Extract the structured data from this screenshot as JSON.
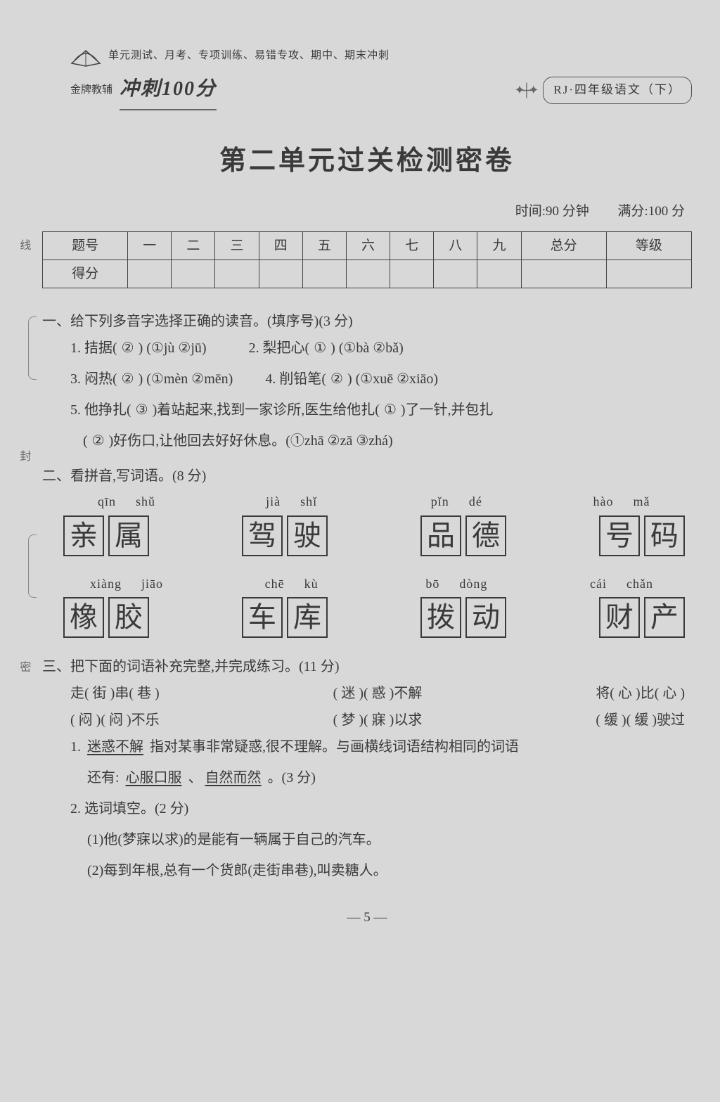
{
  "header": {
    "small_sub": "单元测试、月考、专项训练、易错专攻、期中、期末冲刺",
    "brand": "金牌教辅",
    "slogan": "冲刺100分",
    "badge": "RJ·四年级语文（下）",
    "side_labels": [
      "线",
      "封",
      "密"
    ]
  },
  "title": "第二单元过关检测密卷",
  "meta": {
    "time": "时间:90 分钟",
    "full": "满分:100 分"
  },
  "score_table": {
    "row1": [
      "题号",
      "一",
      "二",
      "三",
      "四",
      "五",
      "六",
      "七",
      "八",
      "九",
      "总分",
      "等级"
    ],
    "row2_head": "得分"
  },
  "q1": {
    "title": "一、给下列多音字选择正确的读音。(填序号)(3 分)",
    "l1a": "1. 拮据(",
    "l1a_ans": "②",
    "l1a_opts": ") (①jù  ②jū)",
    "l1b": "2. 梨把心(",
    "l1b_ans": "①",
    "l1b_opts": ") (①bà  ②bǎ)",
    "l2a": "3. 闷热(",
    "l2a_ans": "②",
    "l2a_opts": ") (①mèn  ②mēn)",
    "l2b": "4. 削铅笔(",
    "l2b_ans": "②",
    "l2b_opts": ") (①xuē  ②xiāo)",
    "l3_pre": "5. 他挣扎(",
    "l3_a1": "③",
    "l3_mid1": ")着站起来,找到一家诊所,医生给他扎(",
    "l3_a2": "①",
    "l3_mid2": ")了一针,并包扎",
    "l3_line2_pre": "(",
    "l3_a3": "②",
    "l3_line2_post": ")好伤口,让他回去好好休息。(①zhā  ②zā  ③zhá)"
  },
  "q2": {
    "title": "二、看拼音,写词语。(8 分)",
    "groups": [
      {
        "py": [
          "qīn",
          "shǔ"
        ],
        "ch": [
          "亲",
          "属"
        ]
      },
      {
        "py": [
          "jià",
          "shǐ"
        ],
        "ch": [
          "驾",
          "驶"
        ]
      },
      {
        "py": [
          "pǐn",
          "dé"
        ],
        "ch": [
          "品",
          "德"
        ]
      },
      {
        "py": [
          "hào",
          "mǎ"
        ],
        "ch": [
          "号",
          "码"
        ]
      },
      {
        "py": [
          "xiàng",
          "jiāo"
        ],
        "ch": [
          "橡",
          "胶"
        ]
      },
      {
        "py": [
          "chē",
          "kù"
        ],
        "ch": [
          "车",
          "库"
        ]
      },
      {
        "py": [
          "bō",
          "dòng"
        ],
        "ch": [
          "拨",
          "动"
        ]
      },
      {
        "py": [
          "cái",
          "chǎn"
        ],
        "ch": [
          "财",
          "产"
        ]
      }
    ]
  },
  "q3": {
    "title": "三、把下面的词语补充完整,并完成练习。(11 分)",
    "row1": [
      {
        "pre": "走(",
        "a": "街",
        "mid": ")串(",
        "b": "巷",
        "post": ")"
      },
      {
        "pre": "(",
        "a": "迷",
        "mid": ")(",
        "b": "惑",
        "post": ")不解"
      },
      {
        "pre": "将(",
        "a": "心",
        "mid": ")比(",
        "b": "心",
        "post": ")"
      }
    ],
    "row2": [
      {
        "pre": "(",
        "a": "闷",
        "mid": ")(",
        "b": "闷",
        "post": ")不乐"
      },
      {
        "pre": "(",
        "a": "梦",
        "mid": ")(",
        "b": "寐",
        "post": ")以求"
      },
      {
        "pre": "(",
        "a": "缓",
        "mid": ")(",
        "b": "缓",
        "post": ")驶过"
      }
    ],
    "sub1_pre": "1. ",
    "sub1_u": "迷惑不解",
    "sub1_mid": " 指对某事非常疑惑,很不理解。与画横线词语结构相同的词语",
    "sub1_line2_pre": "还有: ",
    "sub1_u2": "心服口服",
    "sub1_sep": " 、",
    "sub1_u3": "自然而然",
    "sub1_line2_post": " 。(3 分)",
    "sub2_title": "2. 选词填空。(2 分)",
    "sub2_1_pre": "(1)他(",
    "sub2_1_ans": "梦寐以求",
    "sub2_1_post": ")的是能有一辆属于自己的汽车。",
    "sub2_2_pre": "(2)每到年根,总有一个货郎(",
    "sub2_2_ans": "走街串巷",
    "sub2_2_post": "),叫卖糖人。"
  },
  "page_num": "— 5 —"
}
